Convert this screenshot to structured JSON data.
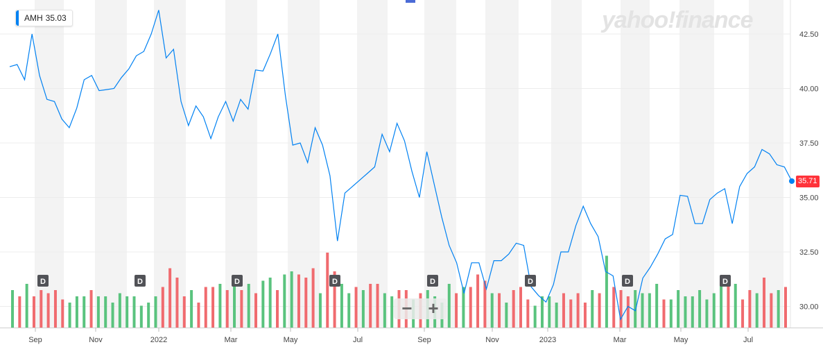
{
  "legend": {
    "symbol": "AMH",
    "value": "35.03"
  },
  "brand": "yahoo!finance",
  "last_price": "35.71",
  "zoom": {
    "minus": "−",
    "plus": "+"
  },
  "colors": {
    "line": "#0081f2",
    "volume_up": "#5ac37e",
    "volume_down": "#f06b6f",
    "band": "#f3f3f3",
    "price_badge": "#ff333a",
    "dividend_marker": "#515257"
  },
  "chart_data": {
    "type": "line",
    "series": [
      {
        "name": "AMH",
        "values": [
          41.0,
          41.1,
          40.4,
          42.5,
          40.6,
          39.5,
          39.4,
          38.6,
          38.2,
          39.1,
          40.4,
          40.6,
          39.9,
          39.95,
          40.0,
          40.5,
          40.9,
          41.5,
          41.7,
          42.5,
          43.6,
          41.4,
          41.8,
          39.4,
          38.3,
          39.2,
          38.7,
          37.7,
          38.7,
          39.4,
          38.5,
          39.5,
          39.05,
          40.85,
          40.8,
          41.6,
          42.5,
          39.7,
          37.4,
          37.5,
          36.6,
          38.2,
          37.4,
          36.0,
          33.0,
          35.2,
          35.5,
          35.8,
          36.1,
          36.4,
          37.9,
          37.1,
          38.4,
          37.6,
          36.2,
          35.0,
          37.1,
          35.6,
          34.1,
          32.8,
          32.0,
          30.6,
          32.0,
          32.0,
          30.8,
          32.1,
          32.1,
          32.4,
          32.9,
          32.8,
          30.9,
          30.5,
          30.2,
          31.0,
          32.5,
          32.5,
          33.7,
          34.6,
          33.8,
          33.2,
          31.6,
          31.4,
          29.4,
          30.0,
          29.8,
          31.3,
          31.8,
          32.4,
          33.1,
          33.3,
          35.1,
          35.05,
          33.8,
          33.8,
          34.9,
          35.2,
          35.4,
          33.8,
          35.5,
          36.1,
          36.4,
          37.2,
          37.0,
          36.5,
          36.4,
          35.75
        ]
      }
    ],
    "volume": {
      "values": [
        12,
        10,
        14,
        10,
        12,
        11,
        12,
        9,
        8,
        10,
        10,
        12,
        10,
        10,
        8,
        11,
        10,
        10,
        7,
        8,
        10,
        13,
        19,
        16,
        10,
        12,
        8,
        13,
        13,
        14,
        12,
        14,
        12,
        14,
        11,
        15,
        16,
        12,
        17,
        18,
        17,
        16,
        19,
        11,
        24,
        18,
        14,
        11,
        13,
        12,
        14,
        14,
        11,
        10,
        12,
        12,
        9,
        11,
        12,
        10,
        8,
        14,
        11,
        13,
        13,
        17,
        15,
        11,
        11,
        8,
        12,
        13,
        9,
        7,
        10,
        10,
        8,
        11,
        9,
        11,
        8,
        12,
        11,
        23,
        13,
        12,
        10,
        12,
        11,
        11,
        14,
        9,
        9,
        12,
        10,
        10,
        12,
        9,
        11,
        15,
        16,
        14,
        9,
        12,
        11,
        16,
        11,
        12,
        13
      ],
      "up": [
        true,
        false,
        true,
        false,
        false,
        false,
        false,
        false,
        true,
        true,
        true,
        false,
        true,
        true,
        true,
        true,
        true,
        true,
        true,
        true,
        true,
        false,
        false,
        false,
        false,
        true,
        false,
        false,
        false,
        true,
        false,
        true,
        false,
        true,
        false,
        true,
        true,
        false,
        true,
        true,
        false,
        false,
        false,
        true,
        false,
        false,
        true,
        true,
        false,
        true,
        false,
        false,
        true,
        true,
        false,
        false,
        true,
        false,
        true,
        true,
        true,
        true,
        false,
        true,
        false,
        false,
        false,
        true,
        false,
        true,
        false,
        false,
        false,
        true,
        true,
        true,
        true,
        false,
        false,
        false,
        false,
        true,
        false,
        true,
        false,
        false,
        false,
        true,
        true,
        true,
        true,
        false,
        true,
        true,
        true,
        true,
        true,
        true,
        true,
        true,
        false,
        true,
        false,
        false,
        true,
        false,
        false,
        true,
        false
      ]
    },
    "dividend_markers": [
      "D",
      "D",
      "D",
      "D",
      "D",
      "D",
      "D",
      "D"
    ],
    "x_tick_labels": [
      "Sep",
      "Nov",
      "2022",
      "Mar",
      "May",
      "Jul",
      "Sep",
      "Nov",
      "2023",
      "Mar",
      "May",
      "Jul"
    ],
    "y_tick_labels": [
      "30.00",
      "32.50",
      "35.00",
      "37.50",
      "40.00",
      "42.50"
    ],
    "y_ticks": [
      30.0,
      32.5,
      35.0,
      37.5,
      40.0,
      42.5
    ],
    "ylim": [
      29.0,
      43.8
    ],
    "grid": true
  }
}
